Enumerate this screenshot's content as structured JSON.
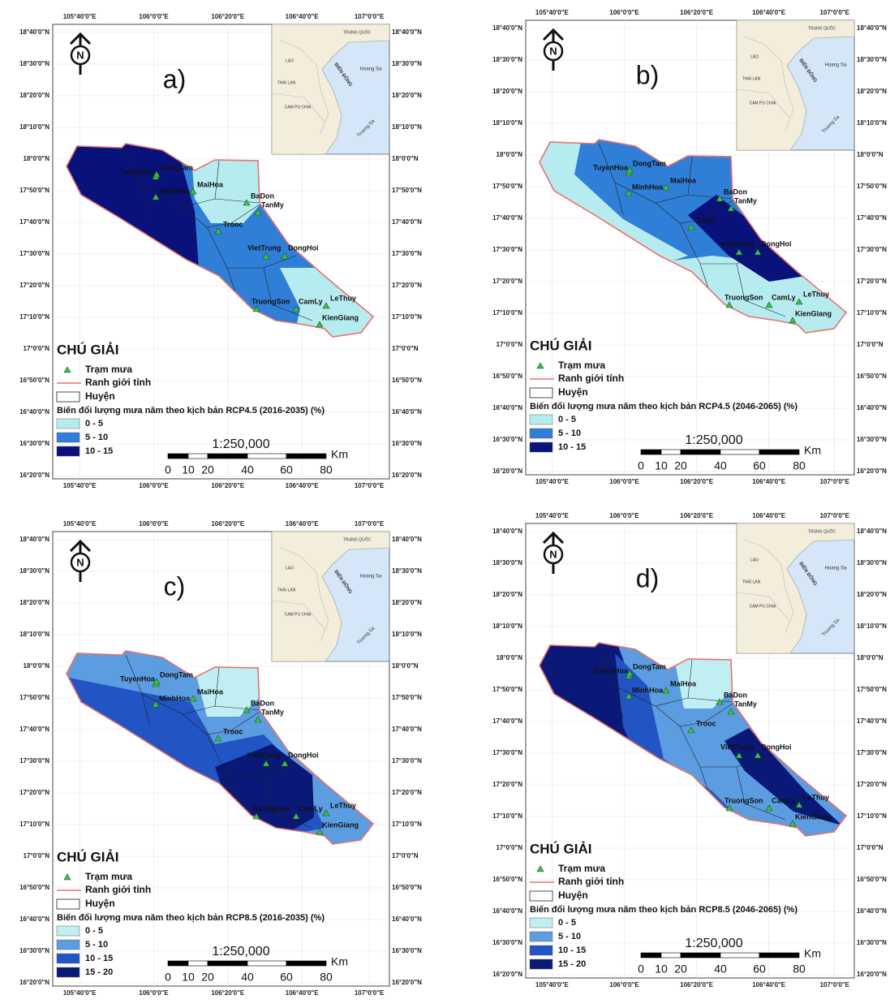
{
  "graticule": {
    "lat_labels": [
      "18°40'0\"N",
      "18°30'0\"N",
      "18°20'0\"N",
      "18°10'0\"N",
      "18°0'0\"N",
      "17°50'0\"N",
      "17°40'0\"N",
      "17°30'0\"N",
      "17°20'0\"N",
      "17°10'0\"N",
      "17°0'0\"N",
      "16°50'0\"N",
      "16°40'0\"N",
      "16°30'0\"N",
      "16°20'0\"N"
    ],
    "lon_labels": [
      "105°40'0\"E",
      "106°0'0\"E",
      "106°20'0\"E",
      "106°40'0\"E",
      "107°0'0\"E"
    ]
  },
  "inset_labels": [
    "TRUNG QUỐC",
    "LÀO",
    "THÁI LAN",
    "CAM PU CHIA",
    "BIỂN ĐÔNG",
    "Hoang Sa",
    "Truong Sa"
  ],
  "north": "N",
  "stations": [
    "TuyenHoa",
    "DongTam",
    "MinhHoa",
    "MaiHoa",
    "BaDon",
    "TanMy",
    "Trooc",
    "VietTrung",
    "DongHoi",
    "TruongSon",
    "CamLy",
    "LeThuy",
    "KienGiang"
  ],
  "legend": {
    "title": "CHÚ GIẢI",
    "items": [
      "Trạm mưa",
      "Ranh giới tỉnh",
      "Huyện"
    ]
  },
  "scale": {
    "ratio": "1:250,000",
    "unit": "Km",
    "marks": [
      0,
      10,
      20,
      40,
      60,
      80
    ]
  },
  "panels": [
    {
      "label": "a)",
      "scenario": "Biến đổi lượng mưa năm theo kịch bản RCP4.5 (2016-2035) (%)",
      "classes": [
        {
          "label": "0 - 5",
          "color": "#b6ecf0"
        },
        {
          "label": "5 - 10",
          "color": "#2f7fd8"
        },
        {
          "label": "10 - 15",
          "color": "#08127a"
        }
      ]
    },
    {
      "label": "b)",
      "scenario": "Biến đổi lượng mưa năm theo kịch bản RCP4.5 (2046-2065) (%)",
      "classes": [
        {
          "label": "0 - 5",
          "color": "#b6ecf0"
        },
        {
          "label": "5 - 10",
          "color": "#2f7fd8"
        },
        {
          "label": "10 - 15",
          "color": "#08127a"
        }
      ]
    },
    {
      "label": "c)",
      "scenario": "Biến đổi lượng mưa năm theo kịch bản RCP8.5 (2016-2035) (%)",
      "classes": [
        {
          "label": "0 - 5",
          "color": "#bfeff3"
        },
        {
          "label": "5 - 10",
          "color": "#5b9de0"
        },
        {
          "label": "10 - 15",
          "color": "#2254c4"
        },
        {
          "label": "15 - 20",
          "color": "#0a1877"
        }
      ]
    },
    {
      "label": "d)",
      "scenario": "Biến đổi lượng mưa năm theo kịch bản RCP8.5 (2046-2065) (%)",
      "classes": [
        {
          "label": "0 - 5",
          "color": "#bfeff3"
        },
        {
          "label": "5 - 10",
          "color": "#5b9de0"
        },
        {
          "label": "10 - 15",
          "color": "#2254c4"
        },
        {
          "label": "15 - 20",
          "color": "#0a1877"
        }
      ]
    }
  ]
}
